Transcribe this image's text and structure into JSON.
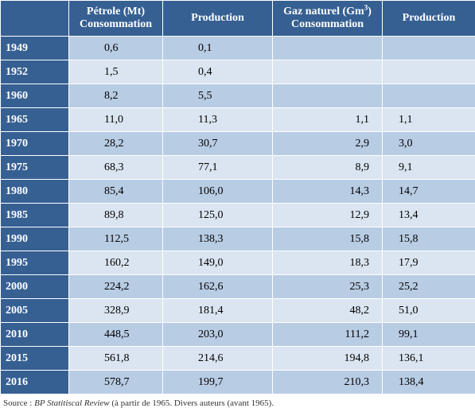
{
  "table": {
    "headers": {
      "petrole_line1": "Pétrole (Mt)",
      "petrole_line2": "Consommation",
      "production1": "Production",
      "gaz_line1_prefix": "Gaz naturel (Gm",
      "gaz_line1_sup": "3",
      "gaz_line1_suffix": ")",
      "gaz_line2": "Consommation",
      "production2": "Production"
    },
    "rows": [
      {
        "year": "1949",
        "petrole_conso": "0,6",
        "petrole_prod": "0,1",
        "gaz_conso": "",
        "gaz_prod": ""
      },
      {
        "year": "1952",
        "petrole_conso": "1,5",
        "petrole_prod": "0,4",
        "gaz_conso": "",
        "gaz_prod": ""
      },
      {
        "year": "1960",
        "petrole_conso": "8,2",
        "petrole_prod": "5,5",
        "gaz_conso": "",
        "gaz_prod": ""
      },
      {
        "year": "1965",
        "petrole_conso": "11,0",
        "petrole_prod": "11,3",
        "gaz_conso": "1,1",
        "gaz_prod": "1,1"
      },
      {
        "year": "1970",
        "petrole_conso": "28,2",
        "petrole_prod": "30,7",
        "gaz_conso": "2,9",
        "gaz_prod": "3,0"
      },
      {
        "year": "1975",
        "petrole_conso": "68,3",
        "petrole_prod": "77,1",
        "gaz_conso": "8,9",
        "gaz_prod": "9,1"
      },
      {
        "year": "1980",
        "petrole_conso": "85,4",
        "petrole_prod": "106,0",
        "gaz_conso": "14,3",
        "gaz_prod": "14,7"
      },
      {
        "year": "1985",
        "petrole_conso": "89,8",
        "petrole_prod": "125,0",
        "gaz_conso": "12,9",
        "gaz_prod": "13,4"
      },
      {
        "year": "1990",
        "petrole_conso": "112,5",
        "petrole_prod": "138,3",
        "gaz_conso": "15,8",
        "gaz_prod": "15,8"
      },
      {
        "year": "1995",
        "petrole_conso": "160,2",
        "petrole_prod": "149,0",
        "gaz_conso": "18,3",
        "gaz_prod": "17,9"
      },
      {
        "year": "2000",
        "petrole_conso": "224,2",
        "petrole_prod": "162,6",
        "gaz_conso": "25,3",
        "gaz_prod": "25,2"
      },
      {
        "year": "2005",
        "petrole_conso": "328,9",
        "petrole_prod": "181,4",
        "gaz_conso": "48,2",
        "gaz_prod": "51,0"
      },
      {
        "year": "2010",
        "petrole_conso": "448,5",
        "petrole_prod": "203,0",
        "gaz_conso": "111,2",
        "gaz_prod": "99,1"
      },
      {
        "year": "2015",
        "petrole_conso": "561,8",
        "petrole_prod": "214,6",
        "gaz_conso": "194,8",
        "gaz_prod": "136,1"
      },
      {
        "year": "2016",
        "petrole_conso": "578,7",
        "petrole_prod": "199,7",
        "gaz_conso": "210,3",
        "gaz_prod": "138,4"
      }
    ]
  },
  "source": {
    "prefix": "Source : ",
    "title": "BP Statitiscal Review",
    "suffix": " (à partir de 1965. Divers auteurs (avant 1965)."
  },
  "colors": {
    "header_bg": "#366092",
    "row_dark": "#b8cce4",
    "row_light": "#dbe5f1"
  }
}
